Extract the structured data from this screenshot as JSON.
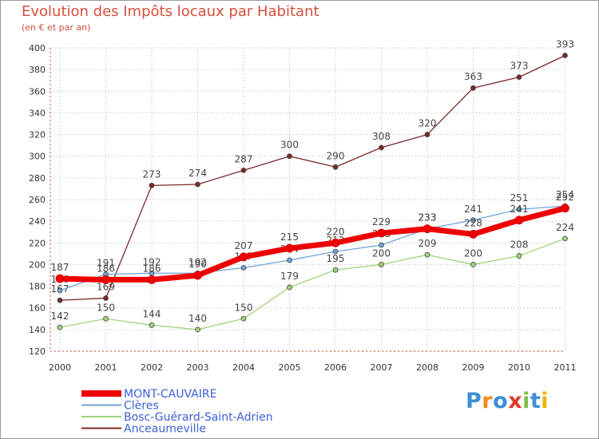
{
  "header": {
    "title": "Evolution des Impôts locaux par Habitant",
    "subtitle": "(en € et par an)"
  },
  "logo": {
    "text": "Proxiti",
    "colors": [
      "#3b8fd6",
      "#f08a24",
      "#3b8fd6",
      "#e0382a",
      "#7ac143",
      "#3b8fd6",
      "#f0b400"
    ]
  },
  "chart_data": {
    "type": "line",
    "x": [
      "2000",
      "2001",
      "2002",
      "2003",
      "2004",
      "2005",
      "2006",
      "2007",
      "2008",
      "2009",
      "2010",
      "2011"
    ],
    "ylim": [
      120,
      400
    ],
    "yticks": [
      "120",
      "140",
      "160",
      "180",
      "200",
      "220",
      "240",
      "260",
      "280",
      "300",
      "320",
      "340",
      "360",
      "380",
      "400"
    ],
    "grid": true,
    "legend_position": "bottom",
    "series": [
      {
        "name": "Anceaumeville",
        "color": "#7a2a2a",
        "values": [
          167,
          169,
          273,
          274,
          287,
          300,
          290,
          308,
          320,
          363,
          373,
          393
        ],
        "labels": [
          "167",
          "169",
          "273",
          "274",
          "287",
          "300",
          "290",
          "308",
          "320",
          "363",
          "373",
          "393"
        ]
      },
      {
        "name": "Bosc-Guérard-Saint-Adrien",
        "color": "#9fd37a",
        "values": [
          142,
          150,
          144,
          140,
          150,
          179,
          195,
          200,
          209,
          200,
          208,
          224
        ],
        "labels": [
          "142",
          "150",
          "144",
          "140",
          "150",
          "179",
          "195",
          "200",
          "209",
          "200",
          "208",
          "224"
        ]
      },
      {
        "name": "Clères",
        "color": "#6ea3d8",
        "values": [
          176,
          191,
          192,
          192,
          197,
          204,
          212,
          218,
          233,
          241,
          251,
          254
        ],
        "labels": [
          "176",
          "191",
          "192",
          "192",
          "197",
          "204",
          "212",
          "218",
          "233",
          "241",
          "251",
          "254"
        ]
      },
      {
        "name": "MONT-CAUVAIRE",
        "color": "#ee0000",
        "values": [
          187,
          186,
          186,
          190,
          207,
          215,
          220,
          229,
          233,
          228,
          241,
          252
        ],
        "labels": [
          "187",
          "186",
          "186",
          "190",
          "207",
          "215",
          "220",
          "229",
          "233",
          "228",
          "241",
          "252"
        ]
      }
    ],
    "legend": [
      {
        "name": "MONT-CAUVAIRE",
        "color": "#ee0000"
      },
      {
        "name": "Clères",
        "color": "#6ea3d8"
      },
      {
        "name": "Bosc-Guérard-Saint-Adrien",
        "color": "#9fd37a"
      },
      {
        "name": "Anceaumeville",
        "color": "#7a2a2a"
      }
    ]
  }
}
